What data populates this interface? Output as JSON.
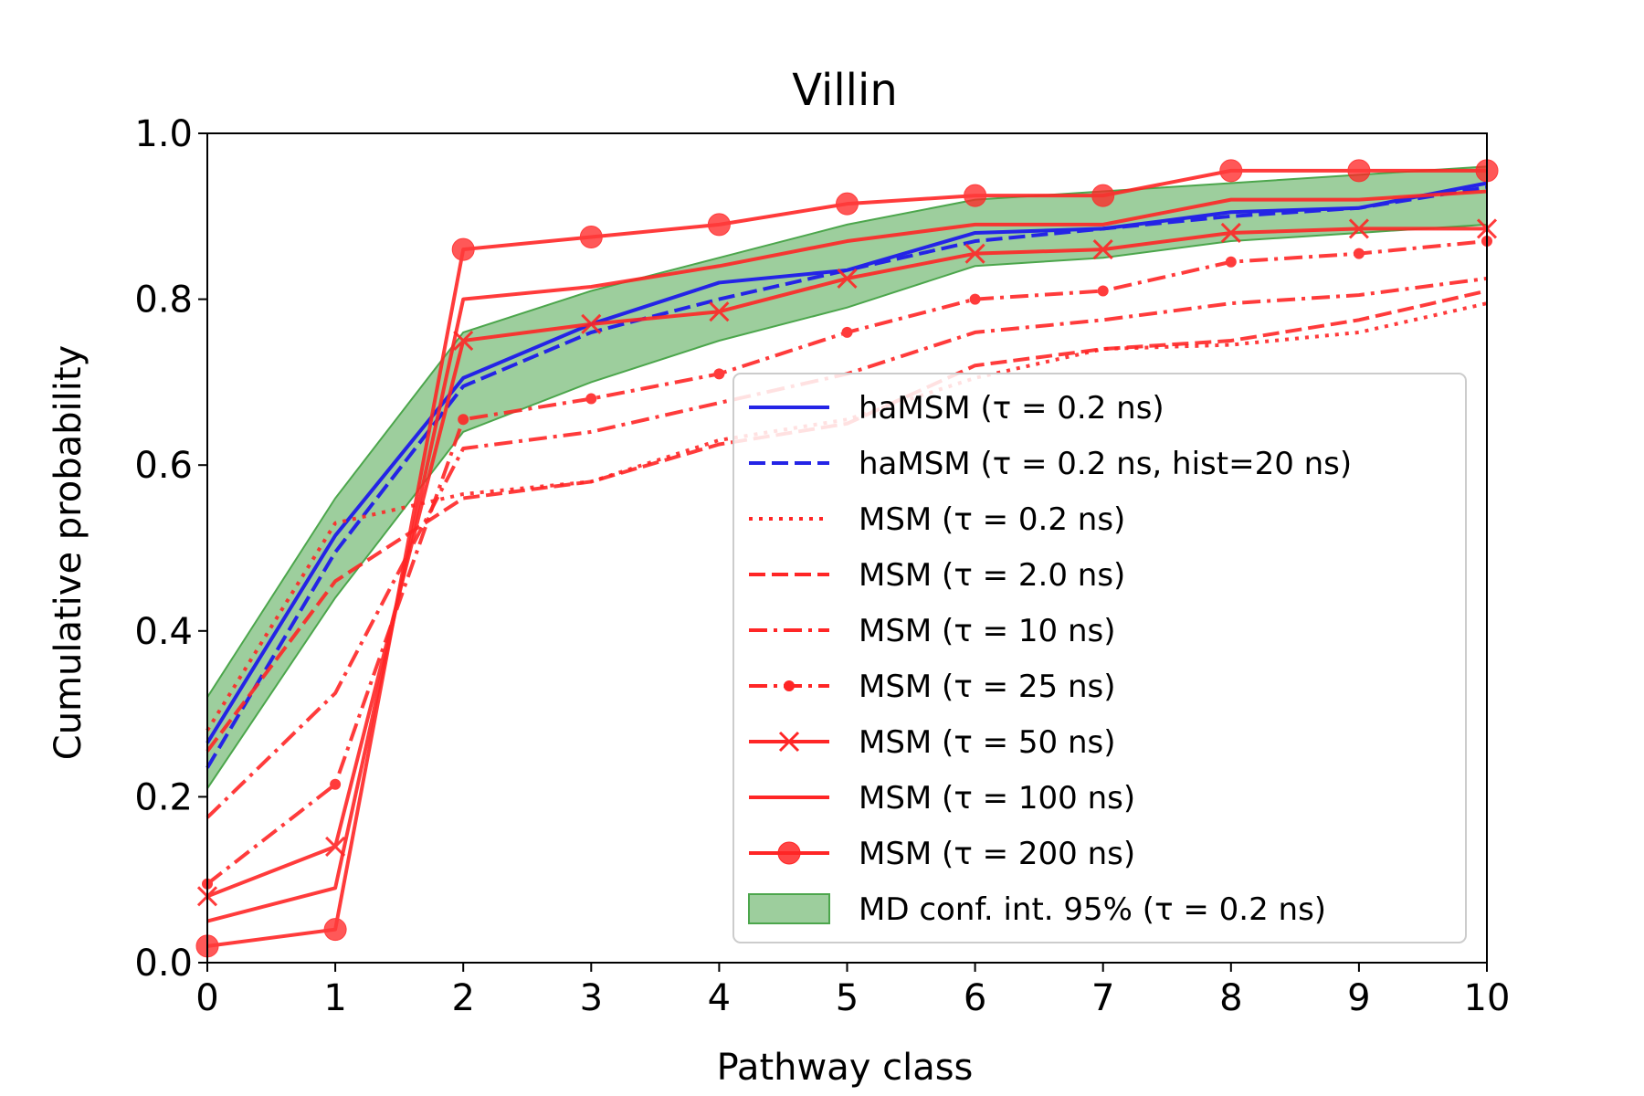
{
  "chart_data": {
    "type": "line",
    "title": "Villin",
    "xlabel": "Pathway class",
    "ylabel": "Cumulative probability",
    "xlim": [
      0,
      10
    ],
    "ylim": [
      0,
      1
    ],
    "xticks": [
      "0",
      "1",
      "2",
      "3",
      "4",
      "5",
      "6",
      "7",
      "8",
      "9",
      "10"
    ],
    "yticks": [
      "0.0",
      "0.2",
      "0.4",
      "0.6",
      "0.8",
      "1.0"
    ],
    "grid": false,
    "legend_position": "lower-right",
    "x": [
      0,
      1,
      2,
      3,
      4,
      5,
      6,
      7,
      8,
      9,
      10
    ],
    "band": {
      "name": "MD conf. int. 95% (τ = 0.2 ns)",
      "color": "#4ca64c",
      "lower": [
        0.21,
        0.44,
        0.64,
        0.7,
        0.75,
        0.79,
        0.84,
        0.85,
        0.87,
        0.88,
        0.89
      ],
      "upper": [
        0.32,
        0.56,
        0.76,
        0.81,
        0.85,
        0.89,
        0.92,
        0.93,
        0.94,
        0.95,
        0.96
      ]
    },
    "series": [
      {
        "name": "haMSM (τ = 0.2 ns)",
        "color": "#2424e6",
        "style": "solid",
        "marker": "none",
        "values": [
          0.265,
          0.515,
          0.705,
          0.77,
          0.82,
          0.835,
          0.88,
          0.885,
          0.905,
          0.91,
          0.94
        ]
      },
      {
        "name": "haMSM (τ = 0.2 ns, hist=20 ns)",
        "color": "#2424e6",
        "style": "dashed",
        "marker": "none",
        "values": [
          0.235,
          0.495,
          0.695,
          0.76,
          0.8,
          0.835,
          0.87,
          0.885,
          0.9,
          0.91,
          0.935
        ]
      },
      {
        "name": "MSM (τ = 0.2 ns)",
        "color": "#ff2626",
        "style": "dotted",
        "marker": "none",
        "values": [
          0.28,
          0.53,
          0.565,
          0.58,
          0.63,
          0.655,
          0.705,
          0.74,
          0.745,
          0.76,
          0.795
        ]
      },
      {
        "name": "MSM (τ = 2.0 ns)",
        "color": "#ff2626",
        "style": "dashed",
        "marker": "none",
        "values": [
          0.255,
          0.46,
          0.56,
          0.58,
          0.625,
          0.65,
          0.72,
          0.74,
          0.75,
          0.775,
          0.81
        ]
      },
      {
        "name": "MSM (τ = 10 ns)",
        "color": "#ff2626",
        "style": "dashdot",
        "marker": "none",
        "values": [
          0.175,
          0.325,
          0.62,
          0.64,
          0.675,
          0.71,
          0.76,
          0.775,
          0.795,
          0.805,
          0.825
        ]
      },
      {
        "name": "MSM (τ = 25 ns)",
        "color": "#ff2626",
        "style": "dashdot",
        "marker": "dot",
        "values": [
          0.095,
          0.215,
          0.655,
          0.68,
          0.71,
          0.76,
          0.8,
          0.81,
          0.845,
          0.855,
          0.87
        ]
      },
      {
        "name": "MSM (τ = 50 ns)",
        "color": "#ff2626",
        "style": "solid",
        "marker": "x",
        "values": [
          0.08,
          0.14,
          0.75,
          0.77,
          0.785,
          0.825,
          0.855,
          0.86,
          0.88,
          0.885,
          0.885
        ]
      },
      {
        "name": "MSM (τ = 100 ns)",
        "color": "#ff2626",
        "style": "solid",
        "marker": "none",
        "values": [
          0.05,
          0.09,
          0.8,
          0.815,
          0.84,
          0.87,
          0.89,
          0.89,
          0.92,
          0.92,
          0.93
        ]
      },
      {
        "name": "MSM (τ = 200 ns)",
        "color": "#ff2626",
        "style": "solid",
        "marker": "circle",
        "values": [
          0.02,
          0.04,
          0.86,
          0.875,
          0.89,
          0.915,
          0.925,
          0.925,
          0.955,
          0.955,
          0.955
        ]
      }
    ]
  }
}
